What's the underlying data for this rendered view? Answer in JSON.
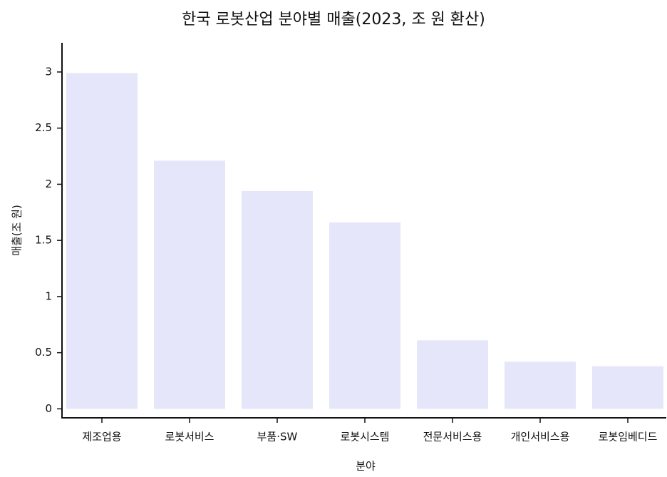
{
  "chart_data": {
    "type": "bar",
    "title": "한국 로봇산업 분야별 매출(2023, 조 원 환산)",
    "x_label": "분야",
    "y_label": "매출(조 원)",
    "categories": [
      "제조업용",
      "로봇서비스",
      "부품·SW",
      "로봇시스템",
      "전문서비스용",
      "개인서비스용",
      "로봇임베디드"
    ],
    "values": [
      2.99,
      2.21,
      1.94,
      1.66,
      0.61,
      0.42,
      0.38
    ],
    "color": "#e6e6fa",
    "ylim": [
      -0.08,
      3.26
    ],
    "yticks": [
      0,
      0.5,
      1,
      1.5,
      2,
      2.5,
      3
    ],
    "grid": false
  }
}
